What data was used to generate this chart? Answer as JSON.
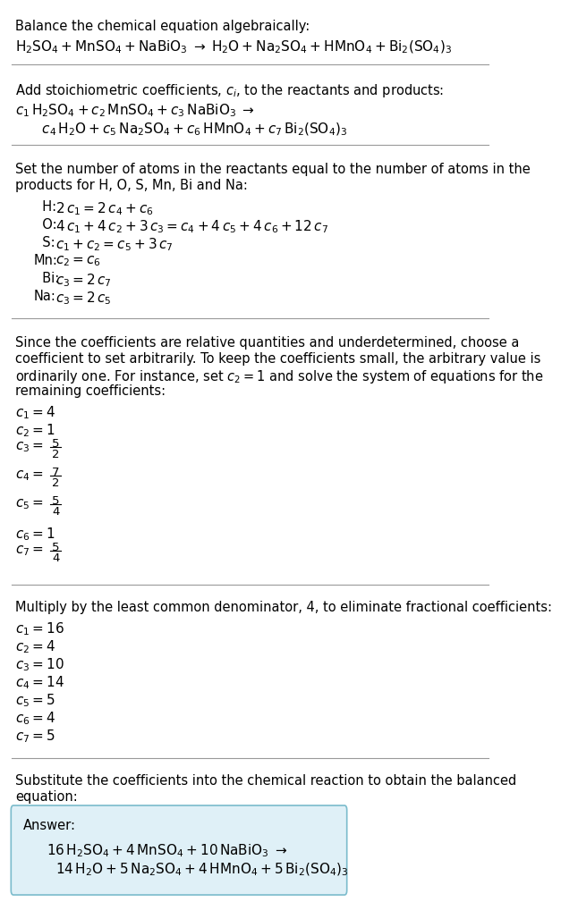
{
  "title": "Balance the chemical equation algebraically:",
  "eq_line": "$\\mathsf{H_2SO_4 + MnSO_4 + NaBiO_3 \\;\\rightarrow\\; H_2O + Na_2SO_4 + HMnO_4 + Bi_2(SO_4)_3}$",
  "section2_title": "Add stoichiometric coefficients, $c_i$, to the reactants and products:",
  "section2_line1": "$c_1\\,\\mathsf{H_2SO_4} + c_2\\,\\mathsf{MnSO_4} + c_3\\,\\mathsf{NaBiO_3} \\;\\rightarrow$",
  "section2_line2": "$\\quad c_4\\,\\mathsf{H_2O} + c_5\\,\\mathsf{Na_2SO_4} + c_6\\,\\mathsf{HMnO_4} + c_7\\,\\mathsf{Bi_2(SO_4)_3}$",
  "section3_title_1": "Set the number of atoms in the reactants equal to the number of atoms in the",
  "section3_title_2": "products for H, O, S, Mn, Bi and Na:",
  "section3_lines": [
    [
      "  H:",
      "$2\\,c_1 = 2\\,c_4 + c_6$"
    ],
    [
      "  O:",
      "$4\\,c_1 + 4\\,c_2 + 3\\,c_3 = c_4 + 4\\,c_5 + 4\\,c_6 + 12\\,c_7$"
    ],
    [
      "  S:",
      "$c_1 + c_2 = c_5 + 3\\,c_7$"
    ],
    [
      "Mn:",
      "$c_2 = c_6$"
    ],
    [
      "  Bi:",
      "$c_3 = 2\\,c_7$"
    ],
    [
      "Na:",
      "$c_3 = 2\\,c_5$"
    ]
  ],
  "section4_para_1": "Since the coefficients are relative quantities and underdetermined, choose a",
  "section4_para_2": "coefficient to set arbitrarily. To keep the coefficients small, the arbitrary value is",
  "section4_para_3": "ordinarily one. For instance, set $c_2 = 1$ and solve the system of equations for the",
  "section4_para_4": "remaining coefficients:",
  "section4_coeffs_plain": [
    "$c_1 = 4$",
    "$c_2 = 1$",
    "$c_6 = 1$"
  ],
  "section4_coeffs_frac": [
    [
      "$c_3 = $",
      "5",
      "2"
    ],
    [
      "$c_4 = $",
      "7",
      "2"
    ],
    [
      "$c_5 = $",
      "5",
      "4"
    ],
    [
      "$c_7 = $",
      "5",
      "4"
    ]
  ],
  "section5_title": "Multiply by the least common denominator, 4, to eliminate fractional coefficients:",
  "section5_coeffs": [
    "$c_1 = 16$",
    "$c_2 = 4$",
    "$c_3 = 10$",
    "$c_4 = 14$",
    "$c_5 = 5$",
    "$c_6 = 4$",
    "$c_7 = 5$"
  ],
  "section6_title_1": "Substitute the coefficients into the chemical reaction to obtain the balanced",
  "section6_title_2": "equation:",
  "answer_label": "Answer:",
  "answer_line1": "$16\\,\\mathsf{H_2SO_4} + 4\\,\\mathsf{MnSO_4} + 10\\,\\mathsf{NaBiO_3} \\;\\rightarrow$",
  "answer_line2": "$14\\,\\mathsf{H_2O} + 5\\,\\mathsf{Na_2SO_4} + 4\\,\\mathsf{HMnO_4} + 5\\,\\mathsf{Bi_2(SO_4)_3}$",
  "bg_color": "#ffffff",
  "answer_box_color": "#dff0f7",
  "answer_box_edge": "#7bbccc",
  "text_color": "#000000"
}
